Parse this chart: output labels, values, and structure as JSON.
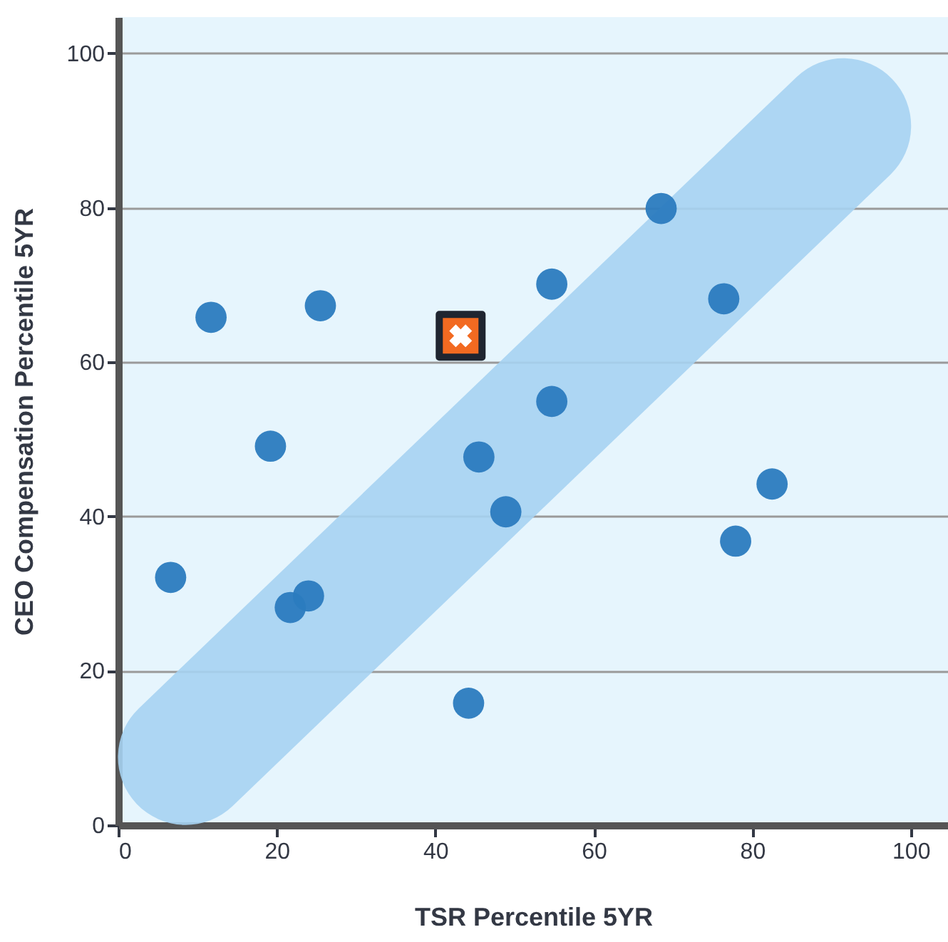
{
  "chart_data": {
    "type": "scatter",
    "xlabel": "TSR Percentile 5YR",
    "ylabel": "CEO Compensation Percentile  5YR",
    "xlim": [
      0,
      104.7
    ],
    "ylim": [
      0,
      104.7
    ],
    "xticks": [
      0,
      20,
      40,
      60,
      80,
      100
    ],
    "yticks": [
      0,
      20,
      40,
      60,
      80,
      100
    ],
    "grid": "y",
    "series": [
      {
        "type": "line",
        "color": "#a6d3f2",
        "x": [
          8.5,
          91.5
        ],
        "values": [
          8.8,
          90.6
        ],
        "line_style": "solid",
        "marker": "none"
      },
      {
        "color": "#2b7bbf",
        "marker": "circle",
        "x": [
          6.6,
          11.7,
          25.5,
          19.2,
          21.7,
          24,
          44.2,
          45.5,
          48.9,
          54.7,
          54.7,
          68.5,
          76.4,
          77.9,
          82.5
        ],
        "values": [
          32.1,
          65.8,
          67.3,
          49.1,
          28.2,
          29.7,
          15.8,
          47.7,
          40.6,
          70.1,
          54.9,
          79.9,
          68.2,
          36.8,
          44.2
        ]
      },
      {
        "color": "#f26a21",
        "marker": "square",
        "x": [
          43.2
        ],
        "values": [
          63.4
        ]
      }
    ]
  }
}
